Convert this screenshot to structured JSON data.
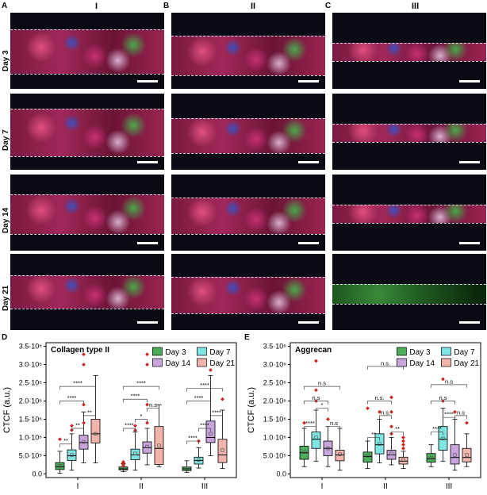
{
  "panel_letters": [
    "A",
    "B",
    "C",
    "D",
    "E"
  ],
  "columns": [
    "I",
    "II",
    "III"
  ],
  "rows": [
    "Day 3",
    "Day 7",
    "Day 14",
    "Day 21"
  ],
  "colors": {
    "day3": "#4cae5b",
    "day7": "#7fe5e3",
    "day14": "#c9a5de",
    "day21": "#f2b5ab",
    "outlier": "#cc2222",
    "mean": "#555555"
  },
  "chart_data": [
    {
      "type": "box",
      "title": "Collagen type II",
      "ylabel": "CTCF (a.u.)",
      "yticks": [
        "0.0",
        "5.0·10⁵",
        "1.0·10⁶",
        "1.5·10⁶",
        "2.0·10⁶",
        "2.5·10⁶",
        "3.0·10⁶",
        "3.5·10⁶"
      ],
      "ylim": [
        -100000,
        3600000
      ],
      "groups": [
        "I",
        "II",
        "III"
      ],
      "series": [
        {
          "name": "Day 3",
          "boxes": [
            [
              20000,
              120000,
              200000,
              310000,
              620000
            ],
            [
              60000,
              110000,
              140000,
              190000,
              280000
            ],
            [
              40000,
              90000,
              140000,
              190000,
              360000
            ]
          ],
          "means": [
            220000,
            160000,
            150000
          ]
        },
        {
          "name": "Day 7",
          "boxes": [
            [
              100000,
              370000,
              500000,
              660000,
              1100000
            ],
            [
              100000,
              390000,
              520000,
              680000,
              1150000
            ],
            [
              160000,
              270000,
              370000,
              460000,
              720000
            ]
          ],
          "means": [
            520000,
            560000,
            380000
          ]
        },
        {
          "name": "Day 14",
          "boxes": [
            [
              300000,
              680000,
              860000,
              1060000,
              1700000
            ],
            [
              250000,
              570000,
              720000,
              880000,
              1250000
            ],
            [
              500000,
              860000,
              1000000,
              1450000,
              2700000
            ]
          ],
          "means": [
            880000,
            750000,
            1100000
          ]
        },
        {
          "name": "Day 21",
          "boxes": [
            [
              300000,
              850000,
              1100000,
              1500000,
              2700000
            ],
            [
              200000,
              260000,
              700000,
              1300000,
              1900000
            ],
            [
              150000,
              310000,
              520000,
              950000,
              1750000
            ]
          ],
          "means": [
            1100000,
            780000,
            650000
          ]
        }
      ],
      "outliers": [
        [
          [
            950000
          ],
          [
            1200000,
            1320000
          ],
          [
            1400000,
            1900000,
            3000000,
            3280000
          ],
          []
        ],
        [
          [
            220000,
            260000,
            300000,
            330000
          ],
          [
            1200000,
            1320000
          ],
          [
            1400000,
            1900000,
            3000000,
            3280000
          ],
          []
        ],
        [
          [],
          [
            900000
          ],
          [
            2850000
          ],
          [
            2050000
          ]
        ]
      ],
      "sig": [
        {
          "g": 0,
          "a": 0,
          "b": 1,
          "y": 820000,
          "label": "**"
        },
        {
          "g": 0,
          "a": 1,
          "b": 2,
          "y": 1250000,
          "label": "**"
        },
        {
          "g": 0,
          "a": 2,
          "b": 3,
          "y": 1600000,
          "label": "**"
        },
        {
          "g": 0,
          "a": 0,
          "b": 2,
          "y": 2000000,
          "label": "****"
        },
        {
          "g": 0,
          "a": 0,
          "b": 3,
          "y": 2400000,
          "label": "****"
        },
        {
          "g": 1,
          "a": 0,
          "b": 1,
          "y": 1250000,
          "label": "****"
        },
        {
          "g": 1,
          "a": 1,
          "b": 2,
          "y": 1500000,
          "label": "*"
        },
        {
          "g": 1,
          "a": 2,
          "b": 3,
          "y": 1800000,
          "label": "n.s"
        },
        {
          "g": 1,
          "a": 0,
          "b": 2,
          "y": 2050000,
          "label": "****"
        },
        {
          "g": 1,
          "a": 0,
          "b": 3,
          "y": 2400000,
          "label": "****"
        },
        {
          "g": 2,
          "a": 0,
          "b": 1,
          "y": 900000,
          "label": "****"
        },
        {
          "g": 2,
          "a": 1,
          "b": 2,
          "y": 1250000,
          "label": "****"
        },
        {
          "g": 2,
          "a": 2,
          "b": 3,
          "y": 1600000,
          "label": "****"
        },
        {
          "g": 2,
          "a": 0,
          "b": 2,
          "y": 2000000,
          "label": "****"
        },
        {
          "g": 2,
          "a": 0,
          "b": 3,
          "y": 2350000,
          "label": "****"
        }
      ]
    },
    {
      "type": "box",
      "title": "Aggrecan",
      "ylabel": "CTCF (a.u.)",
      "yticks": [
        "0.0",
        "5.0·10⁵",
        "1.0·10⁶",
        "1.5·10⁶",
        "2.0·10⁶",
        "2.5·10⁶",
        "3.0·10⁶",
        "3.5·10⁶"
      ],
      "ylim": [
        -100000,
        3600000
      ],
      "groups": [
        "I",
        "II",
        "III"
      ],
      "series": [
        {
          "name": "Day 3",
          "boxes": [
            [
              200000,
              400000,
              580000,
              760000,
              1250000
            ],
            [
              150000,
              320000,
              480000,
              600000,
              900000
            ],
            [
              200000,
              320000,
              420000,
              560000,
              800000
            ]
          ],
          "means": [
            600000,
            500000,
            440000
          ]
        },
        {
          "name": "Day 7",
          "boxes": [
            [
              350000,
              700000,
              950000,
              1150000,
              1750000
            ],
            [
              300000,
              550000,
              800000,
              1100000,
              1500000
            ],
            [
              350000,
              650000,
              950000,
              1300000,
              1800000
            ]
          ],
          "means": [
            1000000,
            820000,
            970000
          ]
        },
        {
          "name": "Day 14",
          "boxes": [
            [
              200000,
              500000,
              700000,
              900000,
              1300000
            ],
            [
              250000,
              400000,
              520000,
              650000,
              1000000
            ],
            [
              100000,
              270000,
              450000,
              800000,
              1500000
            ]
          ],
          "means": [
            700000,
            560000,
            520000
          ]
        },
        {
          "name": "Day 21",
          "boxes": [
            [
              100000,
              360000,
              520000,
              650000,
              1250000
            ],
            [
              150000,
              270000,
              350000,
              460000,
              620000
            ],
            [
              200000,
              330000,
              450000,
              700000,
              1100000
            ]
          ],
          "means": [
            540000,
            380000,
            520000
          ]
        }
      ],
      "outliers": [
        [
          [
            1400000
          ],
          [
            2000000,
            2300000,
            3100000
          ],
          [
            1500000
          ],
          []
        ],
        [
          [
            1800000
          ],
          [
            1700000
          ],
          [
            1100000,
            1300000,
            1700000,
            2100000
          ],
          [
            700000,
            800000,
            900000,
            1000000
          ]
        ],
        [
          [],
          [
            2000000,
            2600000
          ],
          [
            1700000
          ],
          [
            1400000
          ]
        ]
      ],
      "sig": [
        {
          "g": 0,
          "a": 0,
          "b": 1,
          "y": 1300000,
          "label": "****"
        },
        {
          "g": 0,
          "a": 1,
          "b": 2,
          "y": 1800000,
          "label": "*"
        },
        {
          "g": 0,
          "a": 2,
          "b": 3,
          "y": 1300000,
          "label": "n.s"
        },
        {
          "g": 0,
          "a": 0,
          "b": 2,
          "y": 2000000,
          "label": "n.s"
        },
        {
          "g": 0,
          "a": 0,
          "b": 3,
          "y": 2400000,
          "label": "n.s"
        },
        {
          "g": 1,
          "a": 0,
          "b": 1,
          "y": 1000000,
          "label": "**"
        },
        {
          "g": 1,
          "a": 1,
          "b": 2,
          "y": 1600000,
          "label": "n.s."
        },
        {
          "g": 1,
          "a": 2,
          "b": 3,
          "y": 1150000,
          "label": "**"
        },
        {
          "g": 1,
          "a": 0,
          "b": 2,
          "y": 2000000,
          "label": "n.s."
        },
        {
          "g": 1,
          "a": 0,
          "b": 3,
          "y": 2950000,
          "label": "n.s."
        },
        {
          "g": 2,
          "a": 0,
          "b": 1,
          "y": 1150000,
          "label": "****"
        },
        {
          "g": 2,
          "a": 1,
          "b": 2,
          "y": 1550000,
          "label": "****"
        },
        {
          "g": 2,
          "a": 2,
          "b": 3,
          "y": 1600000,
          "label": "n.s"
        },
        {
          "g": 2,
          "a": 0,
          "b": 2,
          "y": 2000000,
          "label": "n.s"
        },
        {
          "g": 2,
          "a": 0,
          "b": 3,
          "y": 2450000,
          "label": "n.s"
        }
      ]
    }
  ]
}
